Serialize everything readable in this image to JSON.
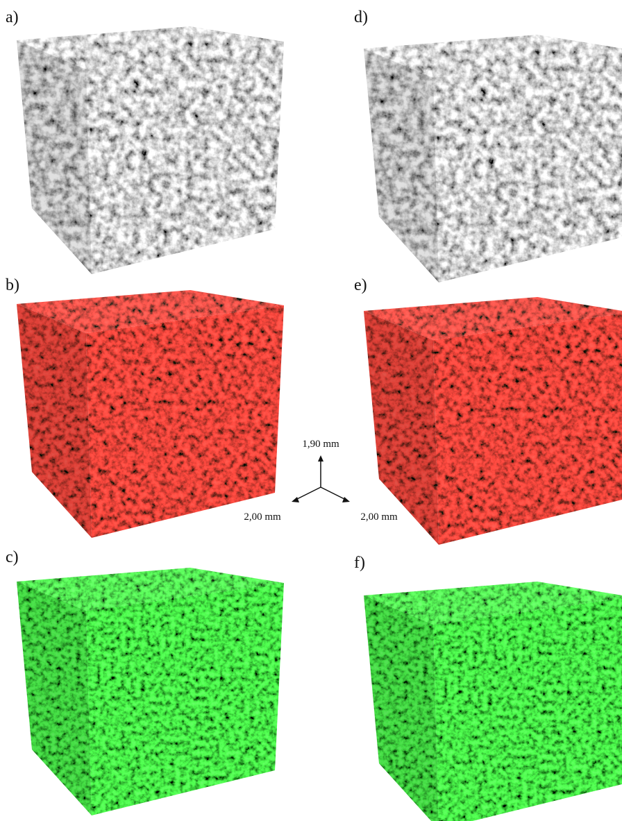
{
  "panels": [
    {
      "label": "a)"
    },
    {
      "label": "b)"
    },
    {
      "label": "c)"
    },
    {
      "label": "d)"
    },
    {
      "label": "e)"
    },
    {
      "label": "f)"
    }
  ],
  "axes": {
    "vertical": "1,90 mm",
    "left": "2,00 mm",
    "right": "2,00 mm"
  }
}
